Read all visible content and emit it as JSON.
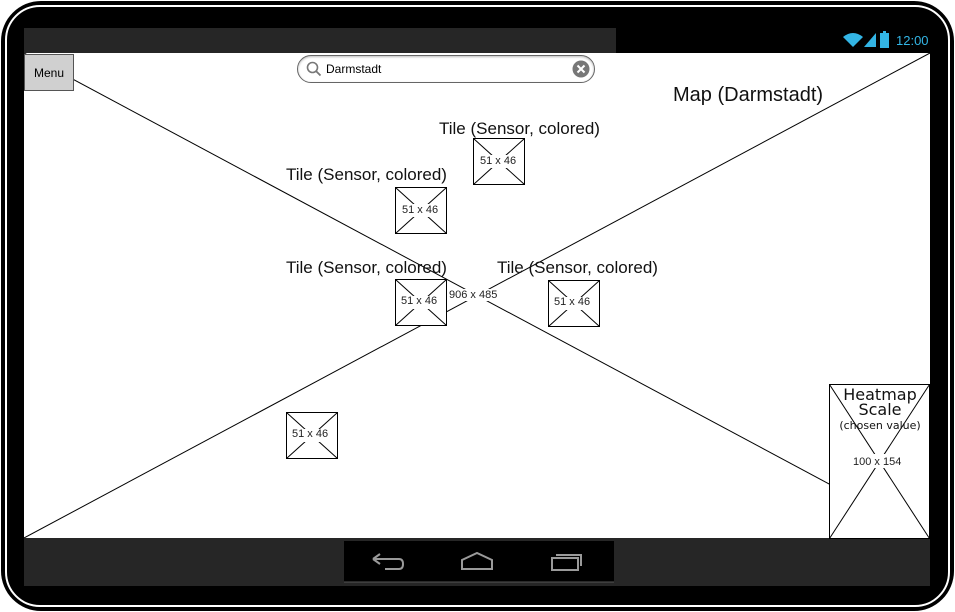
{
  "status_bar": {
    "time": "12:00"
  },
  "menu": {
    "label": "Menu"
  },
  "search": {
    "value": "Darmstadt",
    "placeholder": ""
  },
  "map": {
    "title": "Map (Darmstadt)",
    "size_label": "906 x 485"
  },
  "tiles": [
    {
      "label": "Tile (Sensor, colored)",
      "size_label": "51 x 46"
    },
    {
      "label": "Tile (Sensor, colored)",
      "size_label": "51 x 46"
    },
    {
      "label": "Tile (Sensor, colored)",
      "size_label": "51 x 46"
    },
    {
      "label": "Tile (Sensor, colored)",
      "size_label": "51 x 46"
    },
    {
      "label": "",
      "size_label": "51 x 46"
    }
  ],
  "heatmap": {
    "title_line1": "Heatmap",
    "title_line2": "Scale",
    "subtitle": "(chosen value)",
    "size_label": "100 x 154"
  },
  "nav_bar": {
    "icons": [
      "back-icon",
      "home-icon",
      "recent-apps-icon"
    ]
  },
  "colors": {
    "accent": "#33b5e5",
    "frame": "#000000",
    "bars": "#262626"
  }
}
